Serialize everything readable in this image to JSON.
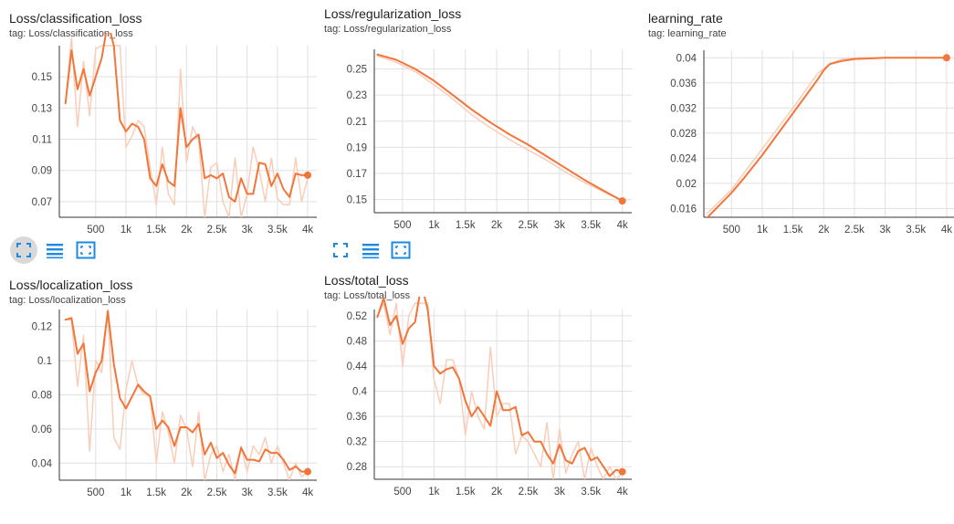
{
  "toolbar_icons": [
    "fit-domain-icon",
    "toggle-y-log-icon",
    "expand-chart-icon"
  ],
  "colors": {
    "line": "#f2753a",
    "raw": "#f9cdb8",
    "grid": "#e0e0e0",
    "axis": "#333333",
    "active_btn": "#d9d9d9",
    "icon": "#1e88e5"
  },
  "chart_data": [
    {
      "type": "line",
      "title": "Loss/classification_loss",
      "tag": "tag: Loss/classification_loss",
      "xlim": [
        -100,
        4150
      ],
      "ylim": [
        0.06,
        0.17
      ],
      "xticks": [
        500,
        1000,
        1500,
        2000,
        2500,
        3000,
        3500,
        4000
      ],
      "xtick_labels": [
        "500",
        "1k",
        "1.5k",
        "2k",
        "2.5k",
        "3k",
        "3.5k",
        "4k"
      ],
      "yticks": [
        0.07,
        0.09,
        0.11,
        0.13,
        0.15
      ],
      "ytick_labels": [
        "0.07",
        "0.09",
        "0.11",
        "0.13",
        "0.15"
      ],
      "grid": true,
      "series": [
        {
          "role": "raw",
          "x": [
            1,
            100,
            200,
            300,
            400,
            500,
            600,
            700,
            800,
            900,
            1000,
            1100,
            1200,
            1300,
            1400,
            1500,
            1600,
            1700,
            1800,
            1900,
            2000,
            2100,
            2200,
            2300,
            2400,
            2500,
            2600,
            2700,
            2800,
            2900,
            3000,
            3100,
            3200,
            3300,
            3400,
            3500,
            3600,
            3700,
            3800,
            3900,
            4000
          ],
          "y": [
            0.133,
            0.175,
            0.118,
            0.16,
            0.125,
            0.168,
            0.17,
            0.17,
            0.17,
            0.17,
            0.105,
            0.112,
            0.122,
            0.118,
            0.092,
            0.068,
            0.105,
            0.075,
            0.068,
            0.155,
            0.095,
            0.118,
            0.11,
            0.06,
            0.092,
            0.095,
            0.07,
            0.06,
            0.098,
            0.06,
            0.075,
            0.105,
            0.09,
            0.07,
            0.098,
            0.072,
            0.068,
            0.068,
            0.098,
            0.07,
            0.085
          ]
        },
        {
          "role": "smoothed",
          "x": [
            1,
            100,
            200,
            300,
            400,
            500,
            600,
            700,
            800,
            900,
            1000,
            1100,
            1200,
            1300,
            1400,
            1500,
            1600,
            1700,
            1800,
            1900,
            2000,
            2100,
            2200,
            2300,
            2400,
            2500,
            2600,
            2700,
            2800,
            2900,
            3000,
            3100,
            3200,
            3300,
            3400,
            3500,
            3600,
            3700,
            3800,
            3900,
            4000
          ],
          "y": [
            0.133,
            0.167,
            0.142,
            0.155,
            0.138,
            0.15,
            0.162,
            0.185,
            0.17,
            0.122,
            0.115,
            0.12,
            0.118,
            0.11,
            0.085,
            0.08,
            0.094,
            0.083,
            0.08,
            0.13,
            0.105,
            0.11,
            0.113,
            0.085,
            0.087,
            0.085,
            0.088,
            0.073,
            0.07,
            0.085,
            0.075,
            0.075,
            0.095,
            0.094,
            0.08,
            0.088,
            0.078,
            0.073,
            0.088,
            0.087,
            0.087
          ]
        }
      ]
    },
    {
      "type": "line",
      "title": "Loss/regularization_loss",
      "tag": "tag: Loss/regularization_loss",
      "xlim": [
        50,
        4150
      ],
      "ylim": [
        0.14,
        0.265
      ],
      "xticks": [
        500,
        1000,
        1500,
        2000,
        2500,
        3000,
        3500,
        4000
      ],
      "xtick_labels": [
        "500",
        "1k",
        "1.5k",
        "2k",
        "2.5k",
        "3k",
        "3.5k",
        "4k"
      ],
      "yticks": [
        0.15,
        0.17,
        0.19,
        0.21,
        0.23,
        0.25
      ],
      "ytick_labels": [
        "0.15",
        "0.17",
        "0.19",
        "0.21",
        "0.23",
        "0.25"
      ],
      "grid": true,
      "series": [
        {
          "role": "raw",
          "x": [
            100,
            400,
            700,
            1000,
            1300,
            1600,
            1900,
            2200,
            2500,
            2800,
            3100,
            3400,
            3700,
            4000
          ],
          "y": [
            0.26,
            0.255,
            0.248,
            0.238,
            0.227,
            0.215,
            0.205,
            0.196,
            0.188,
            0.18,
            0.171,
            0.163,
            0.156,
            0.149
          ]
        },
        {
          "role": "smoothed",
          "x": [
            100,
            400,
            700,
            1000,
            1300,
            1600,
            1900,
            2200,
            2500,
            2800,
            3100,
            3400,
            3700,
            4000
          ],
          "y": [
            0.261,
            0.257,
            0.25,
            0.241,
            0.23,
            0.219,
            0.209,
            0.2,
            0.192,
            0.183,
            0.174,
            0.165,
            0.157,
            0.149
          ]
        }
      ]
    },
    {
      "type": "line",
      "title": "learning_rate",
      "tag": "tag: learning_rate",
      "xlim": [
        50,
        4150
      ],
      "ylim": [
        0.0146,
        0.0412
      ],
      "xticks": [
        500,
        1000,
        1500,
        2000,
        2500,
        3000,
        3500,
        4000
      ],
      "xtick_labels": [
        "500",
        "1k",
        "1.5k",
        "2k",
        "2.5k",
        "3k",
        "3.5k",
        "4k"
      ],
      "yticks": [
        0.016,
        0.02,
        0.024,
        0.028,
        0.032,
        0.036,
        0.04
      ],
      "ytick_labels": [
        "0.016",
        "0.02",
        "0.024",
        "0.028",
        "0.032",
        "0.036",
        "0.04"
      ],
      "grid": true,
      "series": [
        {
          "role": "raw",
          "x": [
            100,
            500,
            1000,
            1500,
            1900,
            2100,
            2300,
            2600,
            3000,
            4000
          ],
          "y": [
            0.0152,
            0.019,
            0.0255,
            0.032,
            0.0375,
            0.039,
            0.0398,
            0.04,
            0.04,
            0.04
          ]
        },
        {
          "role": "smoothed",
          "x": [
            100,
            300,
            500,
            700,
            1000,
            1300,
            1600,
            1900,
            2000,
            2100,
            2300,
            2500,
            2800,
            3000,
            3500,
            4000
          ],
          "y": [
            0.0145,
            0.0165,
            0.0185,
            0.0208,
            0.0245,
            0.0285,
            0.0325,
            0.0365,
            0.038,
            0.039,
            0.0395,
            0.0398,
            0.0399,
            0.04,
            0.04,
            0.04
          ]
        }
      ]
    },
    {
      "type": "line",
      "title": "Loss/localization_loss",
      "tag": "tag: Loss/localization_loss",
      "xlim": [
        -100,
        4150
      ],
      "ylim": [
        0.03,
        0.13
      ],
      "xticks": [
        500,
        1000,
        1500,
        2000,
        2500,
        3000,
        3500,
        4000
      ],
      "xtick_labels": [
        "500",
        "1k",
        "1.5k",
        "2k",
        "2.5k",
        "3k",
        "3.5k",
        "4k"
      ],
      "yticks": [
        0.04,
        0.06,
        0.08,
        0.1,
        0.12
      ],
      "ytick_labels": [
        "0.04",
        "0.06",
        "0.08",
        "0.1",
        "0.12"
      ],
      "grid": true,
      "series": [
        {
          "role": "raw",
          "x": [
            1,
            100,
            200,
            300,
            400,
            500,
            600,
            700,
            800,
            900,
            1000,
            1100,
            1200,
            1300,
            1400,
            1500,
            1600,
            1700,
            1800,
            1900,
            2000,
            2100,
            2200,
            2300,
            2400,
            2500,
            2600,
            2700,
            2800,
            2900,
            3000,
            3100,
            3200,
            3300,
            3400,
            3500,
            3600,
            3700,
            3800,
            3900,
            4000
          ],
          "y": [
            0.124,
            0.124,
            0.085,
            0.115,
            0.047,
            0.1,
            0.093,
            0.13,
            0.055,
            0.048,
            0.083,
            0.1,
            0.085,
            0.08,
            0.08,
            0.04,
            0.07,
            0.058,
            0.04,
            0.068,
            0.06,
            0.038,
            0.07,
            0.03,
            0.045,
            0.05,
            0.035,
            0.045,
            0.03,
            0.05,
            0.035,
            0.05,
            0.045,
            0.055,
            0.04,
            0.05,
            0.04,
            0.03,
            0.04,
            0.032,
            0.035
          ]
        },
        {
          "role": "smoothed",
          "x": [
            1,
            100,
            200,
            300,
            400,
            500,
            600,
            700,
            800,
            900,
            1000,
            1100,
            1200,
            1300,
            1400,
            1500,
            1600,
            1700,
            1800,
            1900,
            2000,
            2100,
            2200,
            2300,
            2400,
            2500,
            2600,
            2700,
            2800,
            2900,
            3000,
            3100,
            3200,
            3300,
            3400,
            3500,
            3600,
            3700,
            3800,
            3900,
            4000
          ],
          "y": [
            0.124,
            0.125,
            0.104,
            0.11,
            0.082,
            0.093,
            0.1,
            0.129,
            0.098,
            0.078,
            0.072,
            0.079,
            0.086,
            0.082,
            0.079,
            0.06,
            0.065,
            0.061,
            0.05,
            0.061,
            0.061,
            0.058,
            0.063,
            0.045,
            0.052,
            0.043,
            0.046,
            0.039,
            0.034,
            0.049,
            0.042,
            0.042,
            0.041,
            0.048,
            0.046,
            0.046,
            0.042,
            0.036,
            0.038,
            0.035,
            0.035
          ]
        }
      ]
    },
    {
      "type": "line",
      "title": "Loss/total_loss",
      "tag": "tag: Loss/total_loss",
      "xlim": [
        50,
        4150
      ],
      "ylim": [
        0.26,
        0.53
      ],
      "xticks": [
        500,
        1000,
        1500,
        2000,
        2500,
        3000,
        3500,
        4000
      ],
      "xtick_labels": [
        "500",
        "1k",
        "1.5k",
        "2k",
        "2.5k",
        "3k",
        "3.5k",
        "4k"
      ],
      "yticks": [
        0.28,
        0.32,
        0.36,
        0.4,
        0.44,
        0.48,
        0.52
      ],
      "ytick_labels": [
        "0.28",
        "0.32",
        "0.36",
        "0.4",
        "0.44",
        "0.48",
        "0.52"
      ],
      "grid": true,
      "series": [
        {
          "role": "raw",
          "x": [
            100,
            200,
            300,
            400,
            500,
            600,
            700,
            800,
            900,
            1000,
            1100,
            1200,
            1300,
            1400,
            1500,
            1600,
            1700,
            1800,
            1900,
            2000,
            2100,
            2200,
            2300,
            2400,
            2500,
            2600,
            2700,
            2800,
            2900,
            3000,
            3100,
            3200,
            3300,
            3400,
            3500,
            3600,
            3700,
            3800,
            3900,
            4000
          ],
          "y": [
            0.52,
            0.54,
            0.49,
            0.54,
            0.44,
            0.52,
            0.54,
            0.54,
            0.54,
            0.42,
            0.38,
            0.45,
            0.45,
            0.42,
            0.33,
            0.4,
            0.36,
            0.34,
            0.47,
            0.36,
            0.38,
            0.38,
            0.3,
            0.33,
            0.32,
            0.3,
            0.28,
            0.35,
            0.26,
            0.34,
            0.27,
            0.3,
            0.32,
            0.26,
            0.31,
            0.28,
            0.26,
            0.28,
            0.26,
            0.27
          ]
        },
        {
          "role": "smoothed",
          "x": [
            100,
            200,
            300,
            400,
            500,
            600,
            700,
            800,
            900,
            1000,
            1100,
            1200,
            1300,
            1400,
            1500,
            1600,
            1700,
            1800,
            1900,
            2000,
            2100,
            2200,
            2300,
            2400,
            2500,
            2600,
            2700,
            2800,
            2900,
            3000,
            3100,
            3200,
            3300,
            3400,
            3500,
            3600,
            3700,
            3800,
            3900,
            4000
          ],
          "y": [
            0.518,
            0.548,
            0.505,
            0.52,
            0.475,
            0.5,
            0.51,
            0.57,
            0.53,
            0.44,
            0.428,
            0.435,
            0.438,
            0.42,
            0.385,
            0.36,
            0.375,
            0.36,
            0.345,
            0.4,
            0.37,
            0.37,
            0.375,
            0.33,
            0.335,
            0.32,
            0.32,
            0.3,
            0.285,
            0.315,
            0.29,
            0.285,
            0.305,
            0.31,
            0.29,
            0.295,
            0.28,
            0.265,
            0.275,
            0.272
          ]
        }
      ]
    }
  ]
}
